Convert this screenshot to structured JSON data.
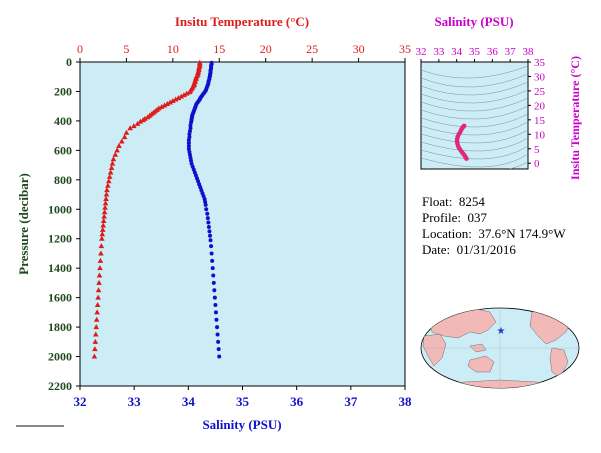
{
  "chart_data": [
    {
      "type": "scatter",
      "top_xlabel": "Insitu Temperature (°C)",
      "bottom_xlabel": "Salinity (PSU)",
      "ylabel": "Pressure (decibar)",
      "temperature_ticks": [
        0,
        5,
        10,
        15,
        20,
        25,
        30,
        35
      ],
      "salinity_ticks": [
        32,
        33,
        34,
        35,
        36,
        37,
        38
      ],
      "pressure_ticks": [
        0,
        200,
        400,
        600,
        800,
        1000,
        1200,
        1400,
        1600,
        1800,
        2000,
        2200
      ],
      "temperature_range": [
        0,
        35
      ],
      "salinity_range": [
        32,
        38
      ],
      "pressure_range": [
        2200,
        0
      ],
      "series": [
        {
          "color": "#dd1c1c",
          "marker": "triangle",
          "points": [
            [
              12.9,
              5
            ],
            [
              12.9,
              15
            ],
            [
              12.9,
              25
            ],
            [
              12.85,
              35
            ],
            [
              12.8,
              45
            ],
            [
              12.8,
              55
            ],
            [
              12.75,
              65
            ],
            [
              12.7,
              75
            ],
            [
              12.7,
              85
            ],
            [
              12.6,
              95
            ],
            [
              12.5,
              105
            ],
            [
              12.5,
              115
            ],
            [
              12.4,
              125
            ],
            [
              12.4,
              135
            ],
            [
              12.3,
              145
            ],
            [
              12.3,
              155
            ],
            [
              12.2,
              165
            ],
            [
              12.1,
              175
            ],
            [
              12.0,
              185
            ],
            [
              11.9,
              195
            ],
            [
              11.8,
              205
            ],
            [
              11.5,
              215
            ],
            [
              11.2,
              225
            ],
            [
              10.9,
              235
            ],
            [
              10.6,
              245
            ],
            [
              10.3,
              255
            ],
            [
              10.0,
              265
            ],
            [
              9.7,
              275
            ],
            [
              9.4,
              285
            ],
            [
              9.1,
              295
            ],
            [
              8.8,
              305
            ],
            [
              8.5,
              315
            ],
            [
              8.3,
              325
            ],
            [
              8.1,
              335
            ],
            [
              7.9,
              345
            ],
            [
              7.7,
              355
            ],
            [
              7.5,
              365
            ],
            [
              7.3,
              375
            ],
            [
              7.0,
              385
            ],
            [
              6.8,
              395
            ],
            [
              6.5,
              405
            ],
            [
              6.2,
              420
            ],
            [
              5.8,
              435
            ],
            [
              5.4,
              450
            ],
            [
              5.0,
              480
            ],
            [
              4.8,
              510
            ],
            [
              4.5,
              540
            ],
            [
              4.2,
              570
            ],
            [
              4.0,
              600
            ],
            [
              3.8,
              630
            ],
            [
              3.6,
              660
            ],
            [
              3.5,
              690
            ],
            [
              3.4,
              720
            ],
            [
              3.3,
              750
            ],
            [
              3.2,
              780
            ],
            [
              3.1,
              810
            ],
            [
              3.0,
              840
            ],
            [
              2.9,
              870
            ],
            [
              2.85,
              900
            ],
            [
              2.8,
              930
            ],
            [
              2.75,
              960
            ],
            [
              2.7,
              990
            ],
            [
              2.65,
              1020
            ],
            [
              2.6,
              1050
            ],
            [
              2.55,
              1080
            ],
            [
              2.5,
              1110
            ],
            [
              2.45,
              1140
            ],
            [
              2.4,
              1170
            ],
            [
              2.35,
              1200
            ],
            [
              2.3,
              1250
            ],
            [
              2.25,
              1300
            ],
            [
              2.2,
              1350
            ],
            [
              2.15,
              1400
            ],
            [
              2.1,
              1450
            ],
            [
              2.05,
              1500
            ],
            [
              2.0,
              1550
            ],
            [
              1.95,
              1600
            ],
            [
              1.9,
              1650
            ],
            [
              1.85,
              1700
            ],
            [
              1.8,
              1750
            ],
            [
              1.75,
              1800
            ],
            [
              1.7,
              1850
            ],
            [
              1.65,
              1900
            ],
            [
              1.6,
              1950
            ],
            [
              1.55,
              2000
            ]
          ]
        },
        {
          "color": "#1010cc",
          "marker": "dot",
          "points": [
            [
              34.43,
              5
            ],
            [
              34.43,
              15
            ],
            [
              34.42,
              25
            ],
            [
              34.42,
              35
            ],
            [
              34.42,
              45
            ],
            [
              34.41,
              55
            ],
            [
              34.41,
              65
            ],
            [
              34.41,
              75
            ],
            [
              34.4,
              85
            ],
            [
              34.4,
              95
            ],
            [
              34.39,
              105
            ],
            [
              34.39,
              115
            ],
            [
              34.38,
              125
            ],
            [
              34.37,
              135
            ],
            [
              34.37,
              145
            ],
            [
              34.36,
              155
            ],
            [
              34.35,
              165
            ],
            [
              34.34,
              175
            ],
            [
              34.33,
              185
            ],
            [
              34.32,
              195
            ],
            [
              34.3,
              205
            ],
            [
              34.28,
              215
            ],
            [
              34.26,
              225
            ],
            [
              34.24,
              235
            ],
            [
              34.22,
              245
            ],
            [
              34.21,
              255
            ],
            [
              34.19,
              265
            ],
            [
              34.17,
              275
            ],
            [
              34.15,
              285
            ],
            [
              34.14,
              295
            ],
            [
              34.13,
              305
            ],
            [
              34.12,
              315
            ],
            [
              34.11,
              325
            ],
            [
              34.1,
              335
            ],
            [
              34.09,
              345
            ],
            [
              34.08,
              355
            ],
            [
              34.07,
              365
            ],
            [
              34.07,
              375
            ],
            [
              34.06,
              385
            ],
            [
              34.06,
              395
            ],
            [
              34.05,
              410
            ],
            [
              34.04,
              430
            ],
            [
              34.04,
              450
            ],
            [
              34.03,
              470
            ],
            [
              34.02,
              490
            ],
            [
              34.02,
              510
            ],
            [
              34.01,
              530
            ],
            [
              34.01,
              550
            ],
            [
              34.01,
              570
            ],
            [
              34.01,
              590
            ],
            [
              34.02,
              610
            ],
            [
              34.03,
              630
            ],
            [
              34.04,
              650
            ],
            [
              34.05,
              670
            ],
            [
              34.06,
              690
            ],
            [
              34.08,
              710
            ],
            [
              34.1,
              730
            ],
            [
              34.12,
              750
            ],
            [
              34.14,
              770
            ],
            [
              34.16,
              790
            ],
            [
              34.18,
              810
            ],
            [
              34.2,
              830
            ],
            [
              34.22,
              850
            ],
            [
              34.24,
              870
            ],
            [
              34.26,
              890
            ],
            [
              34.28,
              910
            ],
            [
              34.3,
              930
            ],
            [
              34.31,
              950
            ],
            [
              34.32,
              970
            ],
            [
              34.33,
              1000
            ],
            [
              34.35,
              1030
            ],
            [
              34.36,
              1060
            ],
            [
              34.37,
              1090
            ],
            [
              34.38,
              1120
            ],
            [
              34.39,
              1150
            ],
            [
              34.4,
              1180
            ],
            [
              34.41,
              1210
            ],
            [
              34.42,
              1250
            ],
            [
              34.43,
              1300
            ],
            [
              34.44,
              1350
            ],
            [
              34.45,
              1400
            ],
            [
              34.46,
              1450
            ],
            [
              34.47,
              1500
            ],
            [
              34.48,
              1550
            ],
            [
              34.49,
              1600
            ],
            [
              34.5,
              1650
            ],
            [
              34.51,
              1700
            ],
            [
              34.52,
              1750
            ],
            [
              34.53,
              1800
            ],
            [
              34.54,
              1850
            ],
            [
              34.55,
              1900
            ],
            [
              34.56,
              1950
            ],
            [
              34.57,
              2000
            ]
          ]
        }
      ]
    },
    {
      "type": "scatter",
      "title": "Salinity (PSU)",
      "ylabel": "Insitu Temperature (°C)",
      "salinity_ticks": [
        32,
        33,
        34,
        35,
        36,
        37,
        38
      ],
      "temperature_ticks": [
        0,
        5,
        10,
        15,
        20,
        25,
        30,
        35
      ],
      "salinity_range": [
        32,
        38
      ],
      "temperature_range": [
        -2,
        35
      ],
      "series": [
        {
          "color": "#e0287f",
          "marker": "dot",
          "points": [
            [
              34.55,
              1.6
            ],
            [
              34.5,
              2.0
            ],
            [
              34.45,
              2.6
            ],
            [
              34.38,
              3.2
            ],
            [
              34.3,
              3.8
            ],
            [
              34.22,
              4.5
            ],
            [
              34.14,
              5.2
            ],
            [
              34.08,
              6.0
            ],
            [
              34.04,
              6.8
            ],
            [
              34.02,
              7.6
            ],
            [
              34.03,
              8.4
            ],
            [
              34.06,
              9.2
            ],
            [
              34.12,
              10.0
            ],
            [
              34.2,
              10.8
            ],
            [
              34.26,
              11.6
            ],
            [
              34.32,
              12.2
            ],
            [
              34.38,
              12.7
            ],
            [
              34.42,
              12.9
            ]
          ]
        }
      ]
    }
  ],
  "float_info": {
    "float_label": "Float:",
    "float_value": "8254",
    "profile_label": "Profile:",
    "profile_value": "037",
    "location_label": "Location:",
    "location_value": "37.6°N  174.9°W",
    "date_label": "Date:",
    "date_value": "01/31/2016"
  },
  "map": {
    "location_marker": "star-icon",
    "marker_color": "#1a3fd1"
  },
  "colors": {
    "temperature": "#dd1c1c",
    "salinity": "#1010cc",
    "ts_axis": "#cc00cc",
    "plot_background": "#ccecf6",
    "axis_text": "#1f4a1f"
  }
}
